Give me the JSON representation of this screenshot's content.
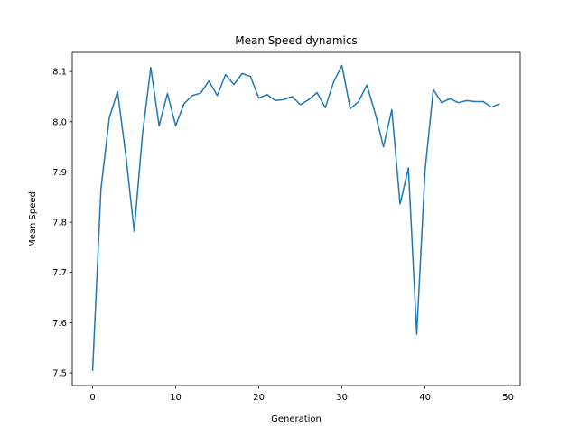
{
  "chart_data": {
    "type": "line",
    "title": "Mean Speed dynamics",
    "xlabel": "Generation",
    "ylabel": "Mean Speed",
    "xlim": [
      -2.45,
      51.45
    ],
    "ylim": [
      7.4749,
      8.138
    ],
    "xticks": [
      0,
      10,
      20,
      30,
      40,
      50
    ],
    "xtick_labels": [
      "0",
      "10",
      "20",
      "30",
      "40",
      "50"
    ],
    "yticks": [
      7.5,
      7.6,
      7.7,
      7.8,
      7.9,
      8.0,
      8.1
    ],
    "ytick_labels": [
      "7.5",
      "7.6",
      "7.7",
      "7.8",
      "7.9",
      "8.0",
      "8.1"
    ],
    "grid": false,
    "legend": "none",
    "series": [
      {
        "color": "#1f77b4",
        "x": [
          0,
          1,
          2,
          3,
          4,
          5,
          6,
          7,
          8,
          9,
          10,
          11,
          12,
          13,
          14,
          15,
          16,
          17,
          18,
          19,
          20,
          21,
          22,
          23,
          24,
          25,
          26,
          27,
          28,
          29,
          30,
          31,
          32,
          33,
          34,
          35,
          36,
          37,
          38,
          39,
          40,
          41,
          42,
          43,
          44,
          45,
          46,
          47,
          48,
          49
        ],
        "values": [
          7.504,
          7.866,
          8.007,
          8.06,
          7.933,
          7.782,
          7.975,
          8.108,
          7.992,
          8.056,
          7.992,
          8.036,
          8.052,
          8.057,
          8.081,
          8.052,
          8.094,
          8.074,
          8.096,
          8.09,
          8.047,
          8.054,
          8.042,
          8.044,
          8.05,
          8.034,
          8.044,
          8.058,
          8.028,
          8.079,
          8.112,
          8.026,
          8.04,
          8.073,
          8.017,
          7.95,
          8.024,
          7.836,
          7.908,
          7.577,
          7.903,
          8.064,
          8.038,
          8.046,
          8.038,
          8.042,
          8.04,
          8.04,
          8.029,
          8.036
        ]
      }
    ]
  }
}
